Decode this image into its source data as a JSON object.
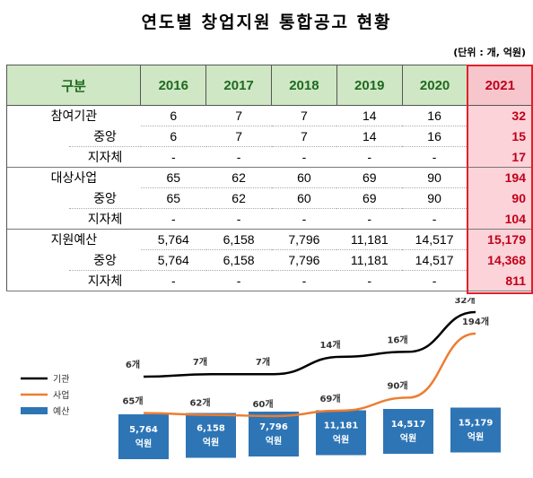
{
  "title": "연도별 창업지원 통합공고 현황",
  "unit": "(단위 : 개, 억원)",
  "table": {
    "header": [
      "구분",
      "2016",
      "2017",
      "2018",
      "2019",
      "2020",
      "2021"
    ],
    "rows": [
      {
        "label": "참여기관",
        "indent": false,
        "values": [
          "6",
          "7",
          "7",
          "14",
          "16",
          "32"
        ]
      },
      {
        "label": "중앙",
        "indent": true,
        "values": [
          "6",
          "7",
          "7",
          "14",
          "16",
          "15"
        ]
      },
      {
        "label": "지자체",
        "indent": true,
        "values": [
          "-",
          "-",
          "-",
          "-",
          "-",
          "17"
        ]
      },
      {
        "label": "대상사업",
        "indent": false,
        "values": [
          "65",
          "62",
          "60",
          "69",
          "90",
          "194"
        ]
      },
      {
        "label": "중앙",
        "indent": true,
        "values": [
          "65",
          "62",
          "60",
          "69",
          "90",
          "90"
        ]
      },
      {
        "label": "지자체",
        "indent": true,
        "values": [
          "-",
          "-",
          "-",
          "-",
          "-",
          "104"
        ]
      },
      {
        "label": "지원예산",
        "indent": false,
        "values": [
          "5,764",
          "6,158",
          "7,796",
          "11,181",
          "14,517",
          "15,179"
        ]
      },
      {
        "label": "중앙",
        "indent": true,
        "values": [
          "5,764",
          "6,158",
          "7,796",
          "11,181",
          "14,517",
          "14,368"
        ]
      },
      {
        "label": "지자체",
        "indent": true,
        "values": [
          "-",
          "-",
          "-",
          "-",
          "-",
          "811"
        ]
      }
    ]
  },
  "colors": {
    "institution_line": "#000000",
    "project_line": "#ed7d31",
    "budget_box": "#2e75b6",
    "highlight": "#e0202a"
  },
  "chart_data": {
    "type": "line",
    "categories": [
      "2016",
      "2017",
      "2018",
      "2019",
      "2020",
      "2021"
    ],
    "series": [
      {
        "name": "기관",
        "values": [
          6,
          7,
          7,
          14,
          16,
          32
        ],
        "labels": [
          "6개",
          "7개",
          "7개",
          "14개",
          "16개",
          "32개"
        ]
      },
      {
        "name": "사업",
        "values": [
          65,
          62,
          60,
          69,
          90,
          194
        ],
        "labels": [
          "65개",
          "62개",
          "60개",
          "69개",
          "90개",
          "194개"
        ]
      },
      {
        "name": "예산",
        "values": [
          5764,
          6158,
          7796,
          11181,
          14517,
          15179
        ],
        "labels": [
          "5,764",
          "6,158",
          "7,796",
          "11,181",
          "14,517",
          "15,179"
        ],
        "unit_label": "억원"
      }
    ]
  }
}
